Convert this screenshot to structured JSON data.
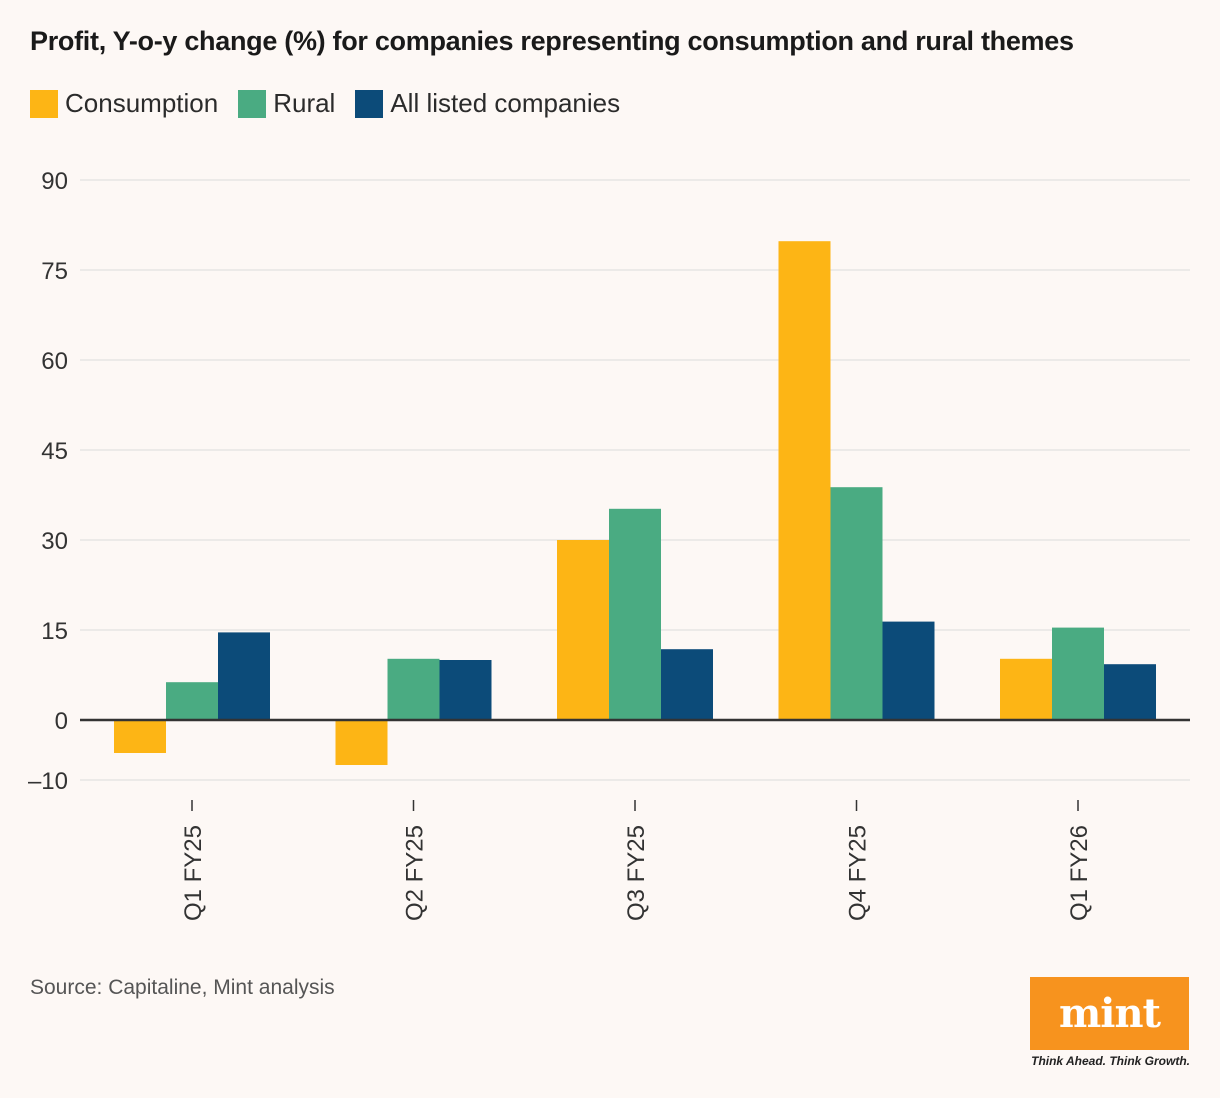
{
  "title": "Profit, Y-o-y change (%) for companies representing consumption and rural themes",
  "source": "Source: Capitaline, Mint analysis",
  "logo": {
    "name": "mint",
    "tagline": "Think Ahead. Think Growth."
  },
  "colors": {
    "consumption": "#fdb515",
    "rural": "#4aab82",
    "all": "#0c4b79",
    "grid": "#dcdcdc",
    "axis": "#333333",
    "logo": "#f7931e"
  },
  "chart_data": {
    "type": "bar",
    "title": "Profit, Y-o-y change (%) for companies representing consumption and rural themes",
    "xlabel": "",
    "ylabel": "",
    "categories": [
      "Q1 FY25",
      "Q2 FY25",
      "Q3 FY25",
      "Q4 FY25",
      "Q1 FY26"
    ],
    "series": [
      {
        "name": "Consumption",
        "color": "#fdb515",
        "values": [
          -5.5,
          -7.5,
          30,
          79.8,
          10.2
        ]
      },
      {
        "name": "Rural",
        "color": "#4aab82",
        "values": [
          6.3,
          10.2,
          35.2,
          38.8,
          15.4
        ]
      },
      {
        "name": "All listed companies",
        "color": "#0c4b79",
        "values": [
          14.6,
          10,
          11.8,
          16.4,
          9.3
        ]
      }
    ],
    "ylim": [
      -10,
      90
    ],
    "yticks": [
      90,
      75,
      60,
      45,
      30,
      15,
      0,
      -10
    ],
    "ytick_labels": [
      "90",
      "75",
      "60",
      "45",
      "30",
      "15",
      "0",
      "–10"
    ],
    "grid": true,
    "legend": "top-left"
  }
}
